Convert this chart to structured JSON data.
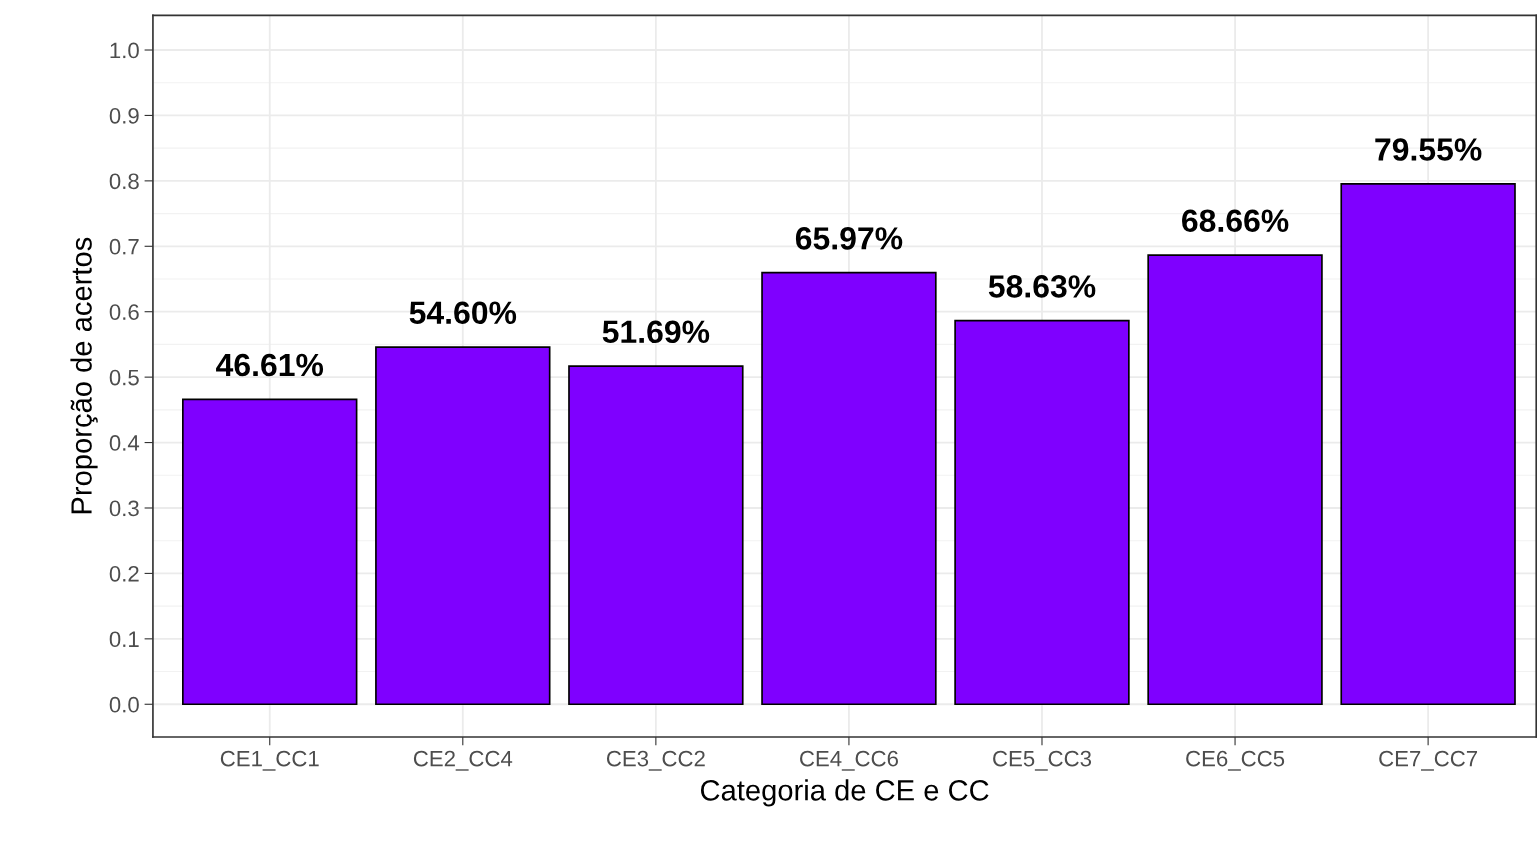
{
  "chart_data": {
    "type": "bar",
    "xlabel": "Categoria de CE e CC",
    "ylabel": "Proporção de acertos",
    "categories": [
      "CE1_CC1",
      "CE2_CC4",
      "CE3_CC2",
      "CE4_CC6",
      "CE5_CC3",
      "CE6_CC5",
      "CE7_CC7"
    ],
    "values": [
      0.4661,
      0.546,
      0.5169,
      0.6597,
      0.5863,
      0.6866,
      0.7955
    ],
    "value_labels": [
      "46.61%",
      "54.60%",
      "51.69%",
      "65.97%",
      "58.63%",
      "68.66%",
      "79.55%"
    ],
    "color": "#7f00ff",
    "ylim": [
      -0.05,
      1.053
    ],
    "yticks": [
      {
        "value": 0,
        "label": "0.0"
      },
      0.1,
      0.2,
      0.3,
      0.4,
      0.5,
      0.6,
      0.7,
      0.8,
      0.9,
      {
        "value": 1,
        "label": "1.0"
      }
    ],
    "grid": true
  }
}
